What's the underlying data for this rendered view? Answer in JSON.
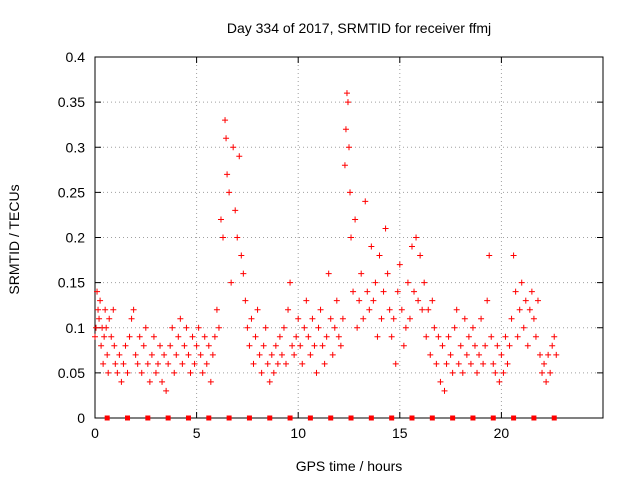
{
  "chart_data": {
    "type": "scatter",
    "title": "Day 334 of 2017, SRMTID for receiver ffmj",
    "xlabel": "GPS time / hours",
    "ylabel": "SRMTID / TECUs",
    "xlim": [
      0,
      25
    ],
    "ylim": [
      0,
      0.4
    ],
    "x_ticks": [
      "0",
      "5",
      "10",
      "15",
      "20"
    ],
    "y_ticks": [
      "0",
      "0.05",
      "0.1",
      "0.15",
      "0.2",
      "0.25",
      "0.3",
      "0.35",
      "0.4"
    ],
    "grid": true,
    "legend": "none",
    "marker": "+",
    "color": "#ff0000",
    "baseline_markers": {
      "y": 0,
      "x": [
        0.6,
        1.6,
        2.6,
        3.6,
        4.6,
        5.6,
        6.6,
        7.6,
        8.6,
        9.6,
        10.6,
        11.6,
        12.6,
        13.6,
        14.6,
        15.6,
        16.6,
        17.6,
        18.6,
        19.6,
        20.6,
        21.6,
        22.6
      ]
    },
    "series": [
      {
        "values": [
          [
            0.0,
            0.09
          ],
          [
            0.05,
            0.1
          ],
          [
            0.1,
            0.14
          ],
          [
            0.15,
            0.12
          ],
          [
            0.2,
            0.11
          ],
          [
            0.25,
            0.13
          ],
          [
            0.3,
            0.08
          ],
          [
            0.35,
            0.1
          ],
          [
            0.4,
            0.06
          ],
          [
            0.45,
            0.09
          ],
          [
            0.5,
            0.12
          ],
          [
            0.55,
            0.1
          ],
          [
            0.6,
            0.07
          ],
          [
            0.65,
            0.05
          ],
          [
            0.7,
            0.11
          ],
          [
            0.8,
            0.09
          ],
          [
            0.9,
            0.12
          ],
          [
            0.95,
            0.08
          ],
          [
            1.0,
            0.06
          ],
          [
            1.1,
            0.05
          ],
          [
            1.2,
            0.07
          ],
          [
            1.3,
            0.04
          ],
          [
            1.4,
            0.06
          ],
          [
            1.5,
            0.08
          ],
          [
            1.6,
            0.05
          ],
          [
            1.7,
            0.09
          ],
          [
            1.8,
            0.11
          ],
          [
            1.9,
            0.12
          ],
          [
            2.0,
            0.07
          ],
          [
            2.1,
            0.06
          ],
          [
            2.2,
            0.09
          ],
          [
            2.3,
            0.05
          ],
          [
            2.4,
            0.08
          ],
          [
            2.5,
            0.1
          ],
          [
            2.6,
            0.06
          ],
          [
            2.7,
            0.04
          ],
          [
            2.8,
            0.07
          ],
          [
            2.9,
            0.09
          ],
          [
            3.0,
            0.05
          ],
          [
            3.1,
            0.06
          ],
          [
            3.2,
            0.08
          ],
          [
            3.3,
            0.04
          ],
          [
            3.4,
            0.07
          ],
          [
            3.5,
            0.03
          ],
          [
            3.6,
            0.06
          ],
          [
            3.7,
            0.08
          ],
          [
            3.8,
            0.1
          ],
          [
            3.9,
            0.05
          ],
          [
            4.0,
            0.07
          ],
          [
            4.1,
            0.09
          ],
          [
            4.2,
            0.11
          ],
          [
            4.3,
            0.06
          ],
          [
            4.4,
            0.08
          ],
          [
            4.5,
            0.1
          ],
          [
            4.6,
            0.07
          ],
          [
            4.7,
            0.05
          ],
          [
            4.8,
            0.09
          ],
          [
            4.9,
            0.06
          ],
          [
            5.0,
            0.08
          ],
          [
            5.1,
            0.1
          ],
          [
            5.2,
            0.07
          ],
          [
            5.3,
            0.05
          ],
          [
            5.4,
            0.09
          ],
          [
            5.5,
            0.06
          ],
          [
            5.6,
            0.08
          ],
          [
            5.7,
            0.04
          ],
          [
            5.8,
            0.07
          ],
          [
            5.9,
            0.09
          ],
          [
            6.0,
            0.12
          ],
          [
            6.1,
            0.1
          ],
          [
            6.2,
            0.22
          ],
          [
            6.3,
            0.2
          ],
          [
            6.4,
            0.33
          ],
          [
            6.45,
            0.31
          ],
          [
            6.5,
            0.27
          ],
          [
            6.6,
            0.25
          ],
          [
            6.7,
            0.15
          ],
          [
            6.8,
            0.3
          ],
          [
            6.9,
            0.23
          ],
          [
            7.0,
            0.2
          ],
          [
            7.1,
            0.29
          ],
          [
            7.2,
            0.18
          ],
          [
            7.3,
            0.16
          ],
          [
            7.4,
            0.13
          ],
          [
            7.5,
            0.1
          ],
          [
            7.6,
            0.08
          ],
          [
            7.7,
            0.11
          ],
          [
            7.8,
            0.06
          ],
          [
            7.9,
            0.09
          ],
          [
            8.0,
            0.12
          ],
          [
            8.1,
            0.07
          ],
          [
            8.2,
            0.05
          ],
          [
            8.3,
            0.08
          ],
          [
            8.4,
            0.1
          ],
          [
            8.5,
            0.06
          ],
          [
            8.6,
            0.04
          ],
          [
            8.7,
            0.07
          ],
          [
            8.8,
            0.05
          ],
          [
            8.9,
            0.08
          ],
          [
            9.0,
            0.06
          ],
          [
            9.1,
            0.09
          ],
          [
            9.2,
            0.07
          ],
          [
            9.3,
            0.1
          ],
          [
            9.4,
            0.06
          ],
          [
            9.5,
            0.12
          ],
          [
            9.6,
            0.15
          ],
          [
            9.7,
            0.08
          ],
          [
            9.8,
            0.07
          ],
          [
            9.9,
            0.09
          ],
          [
            10.0,
            0.11
          ],
          [
            10.1,
            0.08
          ],
          [
            10.2,
            0.06
          ],
          [
            10.3,
            0.1
          ],
          [
            10.4,
            0.13
          ],
          [
            10.5,
            0.09
          ],
          [
            10.6,
            0.07
          ],
          [
            10.7,
            0.11
          ],
          [
            10.8,
            0.08
          ],
          [
            10.9,
            0.05
          ],
          [
            11.0,
            0.1
          ],
          [
            11.1,
            0.12
          ],
          [
            11.2,
            0.08
          ],
          [
            11.3,
            0.06
          ],
          [
            11.4,
            0.09
          ],
          [
            11.5,
            0.16
          ],
          [
            11.6,
            0.11
          ],
          [
            11.7,
            0.07
          ],
          [
            11.8,
            0.1
          ],
          [
            11.9,
            0.13
          ],
          [
            12.0,
            0.09
          ],
          [
            12.1,
            0.08
          ],
          [
            12.2,
            0.11
          ],
          [
            12.3,
            0.28
          ],
          [
            12.35,
            0.32
          ],
          [
            12.4,
            0.36
          ],
          [
            12.45,
            0.35
          ],
          [
            12.5,
            0.3
          ],
          [
            12.55,
            0.25
          ],
          [
            12.6,
            0.2
          ],
          [
            12.7,
            0.14
          ],
          [
            12.8,
            0.22
          ],
          [
            12.9,
            0.1
          ],
          [
            13.0,
            0.13
          ],
          [
            13.1,
            0.16
          ],
          [
            13.2,
            0.11
          ],
          [
            13.3,
            0.24
          ],
          [
            13.4,
            0.14
          ],
          [
            13.5,
            0.12
          ],
          [
            13.6,
            0.19
          ],
          [
            13.7,
            0.13
          ],
          [
            13.8,
            0.15
          ],
          [
            13.9,
            0.09
          ],
          [
            14.0,
            0.18
          ],
          [
            14.1,
            0.11
          ],
          [
            14.2,
            0.14
          ],
          [
            14.3,
            0.21
          ],
          [
            14.4,
            0.16
          ],
          [
            14.5,
            0.12
          ],
          [
            14.6,
            0.09
          ],
          [
            14.7,
            0.11
          ],
          [
            14.8,
            0.06
          ],
          [
            14.9,
            0.14
          ],
          [
            15.0,
            0.17
          ],
          [
            15.1,
            0.12
          ],
          [
            15.2,
            0.08
          ],
          [
            15.3,
            0.1
          ],
          [
            15.4,
            0.15
          ],
          [
            15.5,
            0.11
          ],
          [
            15.6,
            0.19
          ],
          [
            15.7,
            0.14
          ],
          [
            15.8,
            0.2
          ],
          [
            15.9,
            0.13
          ],
          [
            16.0,
            0.18
          ],
          [
            16.1,
            0.12
          ],
          [
            16.2,
            0.15
          ],
          [
            16.3,
            0.09
          ],
          [
            16.4,
            0.12
          ],
          [
            16.5,
            0.07
          ],
          [
            16.6,
            0.13
          ],
          [
            16.7,
            0.1
          ],
          [
            16.8,
            0.06
          ],
          [
            16.9,
            0.09
          ],
          [
            17.0,
            0.04
          ],
          [
            17.1,
            0.08
          ],
          [
            17.2,
            0.03
          ],
          [
            17.3,
            0.06
          ],
          [
            17.4,
            0.09
          ],
          [
            17.5,
            0.07
          ],
          [
            17.6,
            0.05
          ],
          [
            17.7,
            0.1
          ],
          [
            17.8,
            0.12
          ],
          [
            17.9,
            0.06
          ],
          [
            18.0,
            0.08
          ],
          [
            18.1,
            0.05
          ],
          [
            18.2,
            0.11
          ],
          [
            18.3,
            0.07
          ],
          [
            18.4,
            0.09
          ],
          [
            18.5,
            0.06
          ],
          [
            18.6,
            0.1
          ],
          [
            18.7,
            0.08
          ],
          [
            18.8,
            0.05
          ],
          [
            18.9,
            0.07
          ],
          [
            19.0,
            0.11
          ],
          [
            19.1,
            0.06
          ],
          [
            19.2,
            0.08
          ],
          [
            19.3,
            0.13
          ],
          [
            19.4,
            0.18
          ],
          [
            19.5,
            0.09
          ],
          [
            19.6,
            0.06
          ],
          [
            19.7,
            0.05
          ],
          [
            19.8,
            0.08
          ],
          [
            19.9,
            0.04
          ],
          [
            20.0,
            0.07
          ],
          [
            20.1,
            0.05
          ],
          [
            20.2,
            0.09
          ],
          [
            20.3,
            0.06
          ],
          [
            20.4,
            0.08
          ],
          [
            20.5,
            0.11
          ],
          [
            20.6,
            0.18
          ],
          [
            20.7,
            0.14
          ],
          [
            20.8,
            0.09
          ],
          [
            20.9,
            0.12
          ],
          [
            21.0,
            0.15
          ],
          [
            21.1,
            0.1
          ],
          [
            21.2,
            0.13
          ],
          [
            21.3,
            0.08
          ],
          [
            21.4,
            0.12
          ],
          [
            21.5,
            0.14
          ],
          [
            21.6,
            0.11
          ],
          [
            21.7,
            0.09
          ],
          [
            21.8,
            0.13
          ],
          [
            21.9,
            0.07
          ],
          [
            22.0,
            0.05
          ],
          [
            22.1,
            0.06
          ],
          [
            22.2,
            0.04
          ],
          [
            22.3,
            0.07
          ],
          [
            22.4,
            0.05
          ],
          [
            22.5,
            0.08
          ],
          [
            22.6,
            0.09
          ],
          [
            22.7,
            0.07
          ]
        ]
      }
    ]
  }
}
